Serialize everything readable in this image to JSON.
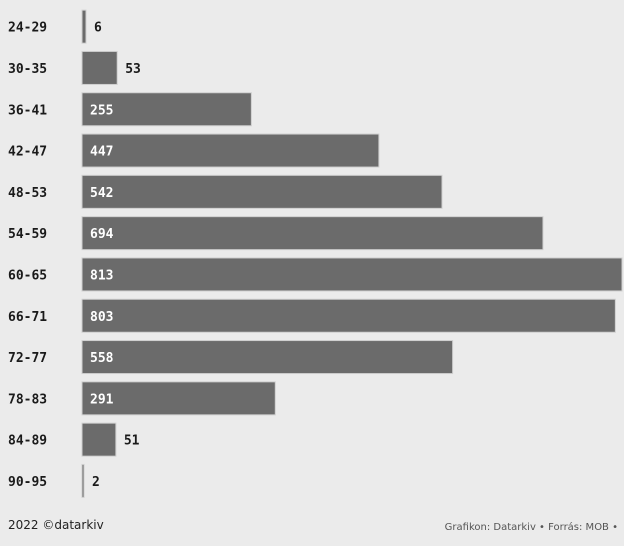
{
  "chart_data": {
    "type": "bar",
    "orientation": "horizontal",
    "categories": [
      "24-29",
      "30-35",
      "36-41",
      "42-47",
      "48-53",
      "54-59",
      "60-65",
      "66-71",
      "72-77",
      "78-83",
      "84-89",
      "90-95"
    ],
    "values": [
      6,
      53,
      255,
      447,
      542,
      694,
      813,
      803,
      558,
      291,
      51,
      2
    ],
    "value_labels": [
      "6",
      "53",
      "255",
      "447",
      "542",
      "694",
      "813",
      "803",
      "558",
      "291",
      "51",
      "2"
    ],
    "xlim": [
      0,
      813
    ],
    "grid": false,
    "legend": "none",
    "colors": {
      "bar": "#6b6b6b",
      "bar_edge": "#cfcfcf",
      "label_inside": "#ffffff",
      "label_outside": "#1a1a1a",
      "background": "#ebebeb"
    }
  },
  "footer": {
    "left": "2022 ©datarkiv",
    "right": "Grafikon: Datarkiv • Forrás: MOB •"
  }
}
